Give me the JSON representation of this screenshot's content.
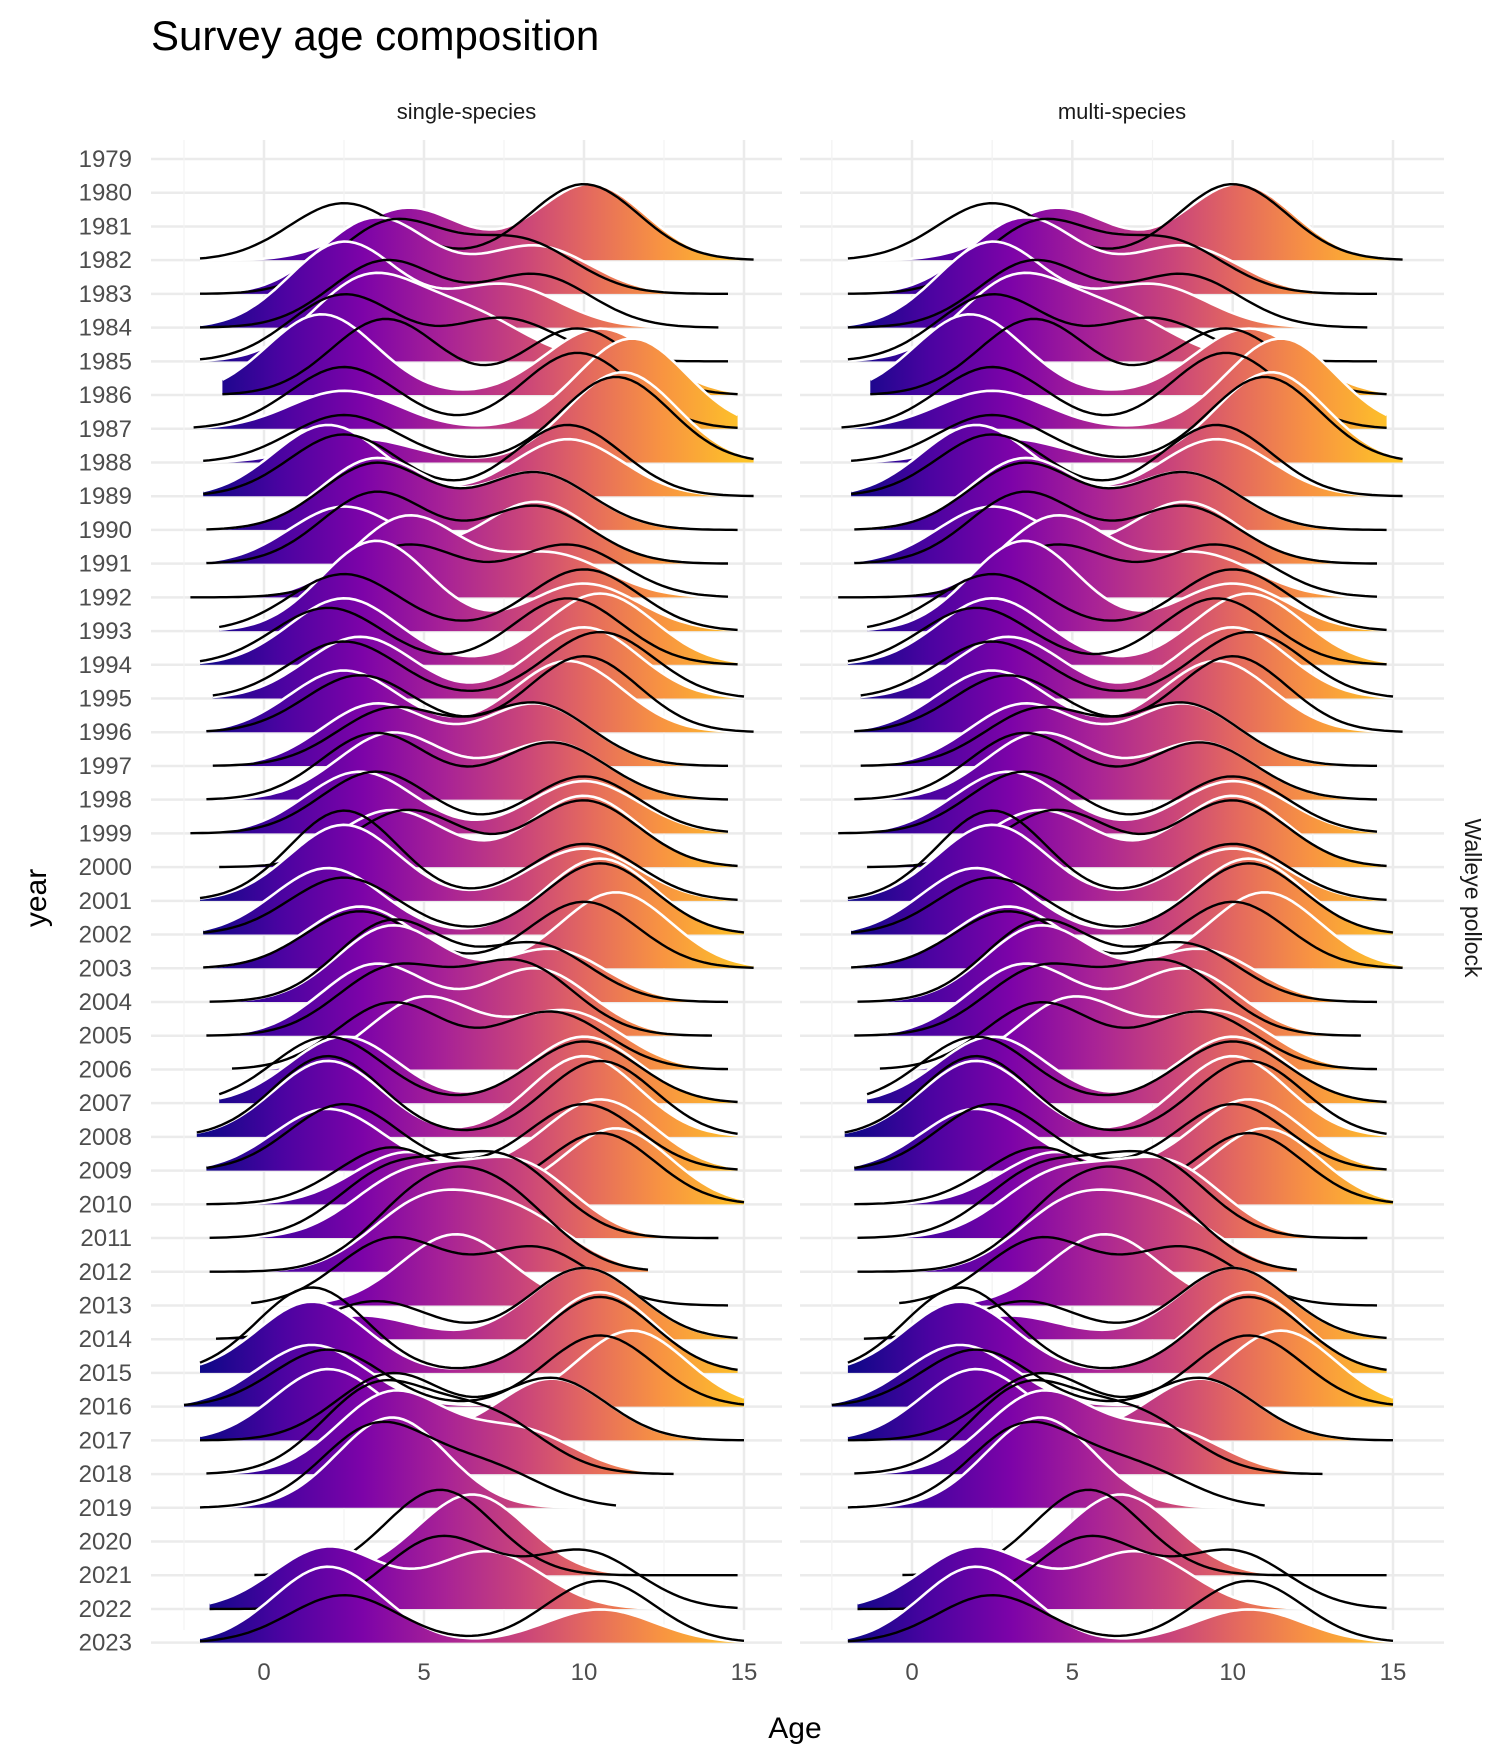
{
  "chart_data": {
    "type": "ridgeline",
    "title": "Survey age composition",
    "xlabel": "Age",
    "ylabel": "year",
    "strip_right": "Walleye pollock",
    "panels": [
      "single-species",
      "multi-species"
    ],
    "xlim": [
      -2.5,
      15.5
    ],
    "x_ticks": [
      0,
      5,
      10,
      15
    ],
    "years": [
      1979,
      1980,
      1981,
      1982,
      1983,
      1984,
      1985,
      1986,
      1987,
      1988,
      1989,
      1990,
      1991,
      1992,
      1993,
      1994,
      1995,
      1996,
      1997,
      1998,
      1999,
      2000,
      2001,
      2002,
      2003,
      2004,
      2005,
      2006,
      2007,
      2008,
      2009,
      2010,
      2011,
      2012,
      2013,
      2014,
      2015,
      2016,
      2017,
      2018,
      2019,
      2020,
      2021,
      2022,
      2023
    ],
    "fill_colorscale": "plasma (by age)",
    "observed_line_color": "#ffffff",
    "predicted_line_color": "#000000",
    "series": [
      {
        "year": 1982,
        "observed": [
          [
            4.5,
            0.55
          ],
          [
            10.2,
            0.8
          ]
        ],
        "predicted": [
          [
            2.5,
            0.6
          ],
          [
            10.0,
            0.8
          ]
        ],
        "range": [
          -2,
          15.3
        ]
      },
      {
        "year": 1983,
        "observed": [
          [
            3.5,
            0.8
          ],
          [
            8.5,
            0.5
          ]
        ],
        "predicted": [
          [
            4.0,
            0.75
          ],
          [
            8.0,
            0.55
          ]
        ],
        "range": [
          -2,
          14.5
        ]
      },
      {
        "year": 1984,
        "observed": [
          [
            2.5,
            0.9
          ],
          [
            7.5,
            0.45
          ]
        ],
        "predicted": [
          [
            3.8,
            0.7
          ],
          [
            8.5,
            0.55
          ]
        ],
        "range": [
          -2,
          14.2
        ]
      },
      {
        "year": 1985,
        "observed": [
          [
            3.2,
            0.85
          ],
          [
            6.5,
            0.45
          ]
        ],
        "predicted": [
          [
            2.5,
            0.7
          ],
          [
            7.5,
            0.45
          ]
        ],
        "range": [
          -2,
          14.5
        ]
      },
      {
        "year": 1986,
        "observed": [
          [
            1.8,
            0.85
          ],
          [
            10.5,
            0.7
          ]
        ],
        "predicted": [
          [
            3.8,
            0.8
          ],
          [
            9.8,
            0.7
          ]
        ],
        "range": [
          -1.3,
          14.8
        ]
      },
      {
        "year": 1987,
        "observed": [
          [
            11.5,
            0.95
          ],
          [
            2.5,
            0.4
          ]
        ],
        "predicted": [
          [
            2.5,
            0.65
          ],
          [
            9.8,
            0.8
          ]
        ],
        "range": [
          -2.2,
          14.8
        ]
      },
      {
        "year": 1988,
        "observed": [
          [
            11.2,
            0.95
          ],
          [
            3.0,
            0.25
          ]
        ],
        "predicted": [
          [
            11.0,
            0.9
          ],
          [
            2.5,
            0.5
          ]
        ],
        "range": [
          -1.9,
          15.3
        ]
      },
      {
        "year": 1989,
        "observed": [
          [
            2.0,
            0.75
          ],
          [
            9.5,
            0.6
          ]
        ],
        "predicted": [
          [
            2.5,
            0.65
          ],
          [
            9.5,
            0.75
          ]
        ],
        "range": [
          -1.9,
          15.3
        ]
      },
      {
        "year": 1990,
        "observed": [
          [
            3.5,
            0.75
          ],
          [
            8.5,
            0.6
          ]
        ],
        "predicted": [
          [
            3.5,
            0.7
          ],
          [
            8.5,
            0.6
          ]
        ],
        "range": [
          -1.8,
          14.8
        ]
      },
      {
        "year": 1991,
        "observed": [
          [
            2.5,
            0.6
          ],
          [
            8.5,
            0.65
          ]
        ],
        "predicted": [
          [
            3.5,
            0.75
          ],
          [
            8.5,
            0.6
          ]
        ],
        "range": [
          -1.8,
          14.5
        ]
      },
      {
        "year": 1992,
        "observed": [
          [
            4.5,
            0.85
          ],
          [
            9.0,
            0.45
          ]
        ],
        "predicted": [
          [
            4.5,
            0.55
          ],
          [
            9.5,
            0.55
          ]
        ],
        "range": [
          -2.3,
          14.5
        ]
      },
      {
        "year": 1993,
        "observed": [
          [
            3.5,
            0.95
          ],
          [
            10.0,
            0.5
          ]
        ],
        "predicted": [
          [
            2.5,
            0.6
          ],
          [
            10.0,
            0.65
          ]
        ],
        "range": [
          -1.4,
          14.8
        ]
      },
      {
        "year": 1994,
        "observed": [
          [
            2.5,
            0.7
          ],
          [
            10.5,
            0.75
          ]
        ],
        "predicted": [
          [
            2.0,
            0.6
          ],
          [
            9.5,
            0.7
          ]
        ],
        "range": [
          -2.0,
          14.8
        ]
      },
      {
        "year": 1995,
        "observed": [
          [
            3.0,
            0.65
          ],
          [
            10.0,
            0.75
          ]
        ],
        "predicted": [
          [
            2.5,
            0.6
          ],
          [
            10.5,
            0.7
          ]
        ],
        "range": [
          -1.6,
          15.0
        ]
      },
      {
        "year": 1996,
        "observed": [
          [
            2.5,
            0.65
          ],
          [
            9.5,
            0.75
          ]
        ],
        "predicted": [
          [
            3.0,
            0.6
          ],
          [
            10.0,
            0.8
          ]
        ],
        "range": [
          -1.8,
          15.3
        ]
      },
      {
        "year": 1997,
        "observed": [
          [
            3.5,
            0.65
          ],
          [
            8.5,
            0.65
          ]
        ],
        "predicted": [
          [
            4.0,
            0.6
          ],
          [
            8.5,
            0.65
          ]
        ],
        "range": [
          -1.6,
          14.5
        ]
      },
      {
        "year": 1998,
        "observed": [
          [
            4.0,
            0.7
          ],
          [
            9.0,
            0.6
          ]
        ],
        "predicted": [
          [
            3.5,
            0.7
          ],
          [
            9.0,
            0.6
          ]
        ],
        "range": [
          -1.8,
          14.5
        ]
      },
      {
        "year": 1999,
        "observed": [
          [
            3.0,
            0.65
          ],
          [
            10.0,
            0.55
          ]
        ],
        "predicted": [
          [
            3.5,
            0.65
          ],
          [
            10.0,
            0.6
          ]
        ],
        "range": [
          -2.3,
          14.5
        ]
      },
      {
        "year": 2000,
        "observed": [
          [
            4.0,
            0.6
          ],
          [
            10.0,
            0.75
          ]
        ],
        "predicted": [
          [
            4.5,
            0.6
          ],
          [
            10.0,
            0.7
          ]
        ],
        "range": [
          -1.4,
          14.8
        ]
      },
      {
        "year": 2001,
        "observed": [
          [
            2.5,
            0.8
          ],
          [
            10.0,
            0.55
          ]
        ],
        "predicted": [
          [
            2.5,
            0.95
          ],
          [
            10.0,
            0.6
          ]
        ],
        "range": [
          -2.0,
          14.8
        ]
      },
      {
        "year": 2002,
        "observed": [
          [
            2.0,
            0.7
          ],
          [
            10.5,
            0.8
          ]
        ],
        "predicted": [
          [
            2.5,
            0.6
          ],
          [
            10.5,
            0.75
          ]
        ],
        "range": [
          -1.9,
          15.0
        ]
      },
      {
        "year": 2003,
        "observed": [
          [
            3.0,
            0.65
          ],
          [
            11.0,
            0.8
          ]
        ],
        "predicted": [
          [
            3.0,
            0.6
          ],
          [
            10.0,
            0.7
          ]
        ],
        "range": [
          -1.9,
          15.3
        ]
      },
      {
        "year": 2004,
        "observed": [
          [
            4.0,
            0.8
          ],
          [
            9.0,
            0.55
          ]
        ],
        "predicted": [
          [
            4.0,
            0.85
          ],
          [
            8.5,
            0.6
          ]
        ],
        "range": [
          -1.7,
          14.5
        ]
      },
      {
        "year": 2005,
        "observed": [
          [
            3.5,
            0.75
          ],
          [
            8.5,
            0.7
          ]
        ],
        "predicted": [
          [
            4.0,
            0.7
          ],
          [
            8.0,
            0.75
          ]
        ],
        "range": [
          -1.8,
          14.0
        ]
      },
      {
        "year": 2006,
        "observed": [
          [
            5.0,
            0.75
          ],
          [
            9.5,
            0.6
          ]
        ],
        "predicted": [
          [
            4.0,
            0.7
          ],
          [
            9.0,
            0.6
          ]
        ],
        "range": [
          -1.0,
          14.5
        ]
      },
      {
        "year": 2007,
        "observed": [
          [
            2.5,
            0.7
          ],
          [
            10.0,
            0.7
          ]
        ],
        "predicted": [
          [
            2.0,
            0.7
          ],
          [
            10.0,
            0.65
          ]
        ],
        "range": [
          -1.4,
          14.8
        ]
      },
      {
        "year": 2008,
        "observed": [
          [
            2.0,
            0.8
          ],
          [
            10.0,
            0.85
          ]
        ],
        "predicted": [
          [
            2.0,
            0.85
          ],
          [
            10.5,
            0.8
          ]
        ],
        "range": [
          -2.1,
          14.8
        ]
      },
      {
        "year": 2009,
        "observed": [
          [
            2.0,
            0.65
          ],
          [
            10.5,
            0.75
          ]
        ],
        "predicted": [
          [
            2.5,
            0.7
          ],
          [
            10.0,
            0.7
          ]
        ],
        "range": [
          -1.8,
          14.8
        ]
      },
      {
        "year": 2010,
        "observed": [
          [
            4.5,
            0.55
          ],
          [
            11.0,
            0.8
          ]
        ],
        "predicted": [
          [
            4.0,
            0.6
          ],
          [
            10.5,
            0.75
          ]
        ],
        "range": [
          -1.8,
          15.0
        ]
      },
      {
        "year": 2011,
        "observed": [
          [
            4.5,
            0.65
          ],
          [
            8.0,
            0.75
          ]
        ],
        "predicted": [
          [
            4.0,
            0.7
          ],
          [
            7.5,
            0.8
          ]
        ],
        "range": [
          -1.7,
          14.2
        ]
      },
      {
        "year": 2012,
        "observed": [
          [
            5.0,
            0.7
          ],
          [
            8.0,
            0.55
          ]
        ],
        "predicted": [
          [
            5.0,
            0.75
          ],
          [
            7.5,
            0.7
          ]
        ],
        "range": [
          -1.7,
          12.0
        ]
      },
      {
        "year": 2013,
        "observed": [
          [
            6.0,
            0.75
          ]
        ],
        "predicted": [
          [
            4.0,
            0.7
          ],
          [
            8.5,
            0.6
          ]
        ],
        "range": [
          -0.4,
          14.5
        ]
      },
      {
        "year": 2014,
        "observed": [
          [
            10.0,
            0.75
          ],
          [
            3.0,
            0.25
          ]
        ],
        "predicted": [
          [
            3.5,
            0.4
          ],
          [
            10.0,
            0.75
          ]
        ],
        "range": [
          -1.5,
          14.8
        ]
      },
      {
        "year": 2015,
        "observed": [
          [
            1.5,
            0.75
          ],
          [
            10.5,
            0.85
          ]
        ],
        "predicted": [
          [
            1.5,
            0.9
          ],
          [
            10.5,
            0.8
          ]
        ],
        "range": [
          -2.0,
          14.8
        ]
      },
      {
        "year": 2016,
        "observed": [
          [
            1.5,
            0.65
          ],
          [
            11.5,
            0.8
          ]
        ],
        "predicted": [
          [
            2.0,
            0.6
          ],
          [
            10.5,
            0.75
          ]
        ],
        "range": [
          -2.5,
          15.0
        ]
      },
      {
        "year": 2017,
        "observed": [
          [
            2.0,
            0.75
          ],
          [
            9.0,
            0.65
          ]
        ],
        "predicted": [
          [
            4.0,
            0.7
          ],
          [
            9.0,
            0.65
          ]
        ],
        "range": [
          -2.0,
          15.0
        ]
      },
      {
        "year": 2018,
        "observed": [
          [
            4.0,
            0.85
          ],
          [
            8.0,
            0.45
          ]
        ],
        "predicted": [
          [
            3.5,
            0.9
          ],
          [
            7.0,
            0.6
          ]
        ],
        "range": [
          -1.8,
          12.8
        ]
      },
      {
        "year": 2019,
        "observed": [
          [
            4.0,
            0.95
          ]
        ],
        "predicted": [
          [
            3.5,
            0.85
          ],
          [
            7.0,
            0.4
          ]
        ],
        "range": [
          -2.0,
          11.0
        ]
      },
      {
        "year": 2021,
        "observed": [
          [
            6.5,
            0.85
          ]
        ],
        "predicted": [
          [
            5.5,
            0.9
          ]
        ],
        "range": [
          -0.3,
          14.8
        ]
      },
      {
        "year": 2022,
        "observed": [
          [
            2.0,
            0.65
          ],
          [
            7.0,
            0.6
          ]
        ],
        "predicted": [
          [
            5.5,
            0.75
          ],
          [
            10.0,
            0.6
          ]
        ],
        "range": [
          -1.7,
          14.8
        ]
      },
      {
        "year": 2023,
        "observed": [
          [
            2.0,
            0.8
          ],
          [
            10.5,
            0.35
          ]
        ],
        "predicted": [
          [
            2.5,
            0.5
          ],
          [
            10.5,
            0.65
          ]
        ],
        "range": [
          -2.0,
          15.0
        ]
      }
    ]
  }
}
